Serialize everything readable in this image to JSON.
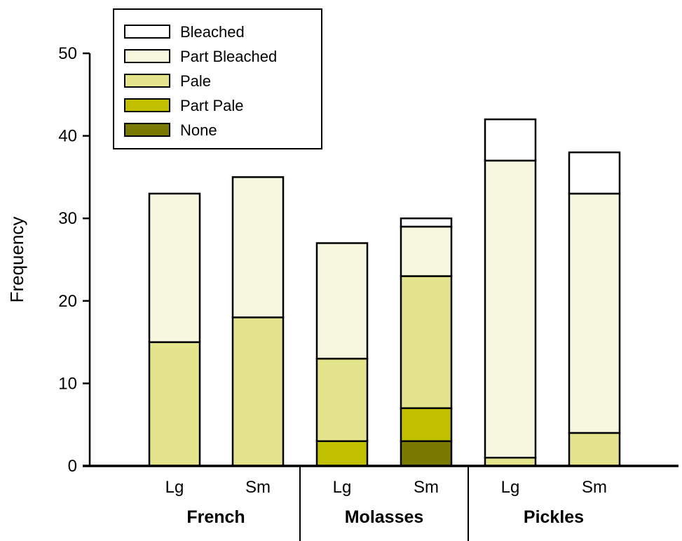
{
  "chart_data": {
    "type": "bar",
    "stacked": true,
    "ylabel": "Frequency",
    "ylim": [
      0,
      50
    ],
    "yticks": [
      0,
      10,
      20,
      30,
      40,
      50
    ],
    "legend_position": "top-left",
    "categories": [
      "Lg",
      "Sm",
      "Lg",
      "Sm",
      "Lg",
      "Sm"
    ],
    "groups": [
      {
        "label": "French",
        "categories": [
          "Lg",
          "Sm"
        ]
      },
      {
        "label": "Molasses",
        "categories": [
          "Lg",
          "Sm"
        ]
      },
      {
        "label": "Pickles",
        "categories": [
          "Lg",
          "Sm"
        ]
      }
    ],
    "series": [
      {
        "name": "None",
        "color": "#7a7a00",
        "values": [
          0,
          0,
          0,
          3,
          0,
          0
        ]
      },
      {
        "name": "Part Pale",
        "color": "#c0c000",
        "values": [
          0,
          0,
          3,
          4,
          0,
          0
        ]
      },
      {
        "name": "Pale",
        "color": "#e3e48c",
        "values": [
          15,
          18,
          10,
          16,
          1,
          4
        ]
      },
      {
        "name": "Part Bleached",
        "color": "#f7f7e0",
        "values": [
          18,
          17,
          14,
          6,
          36,
          29
        ]
      },
      {
        "name": "Bleached",
        "color": "#ffffff",
        "values": [
          0,
          0,
          0,
          1,
          5,
          5
        ]
      }
    ],
    "legend_order": [
      "Bleached",
      "Part Bleached",
      "Pale",
      "Part Pale",
      "None"
    ]
  }
}
